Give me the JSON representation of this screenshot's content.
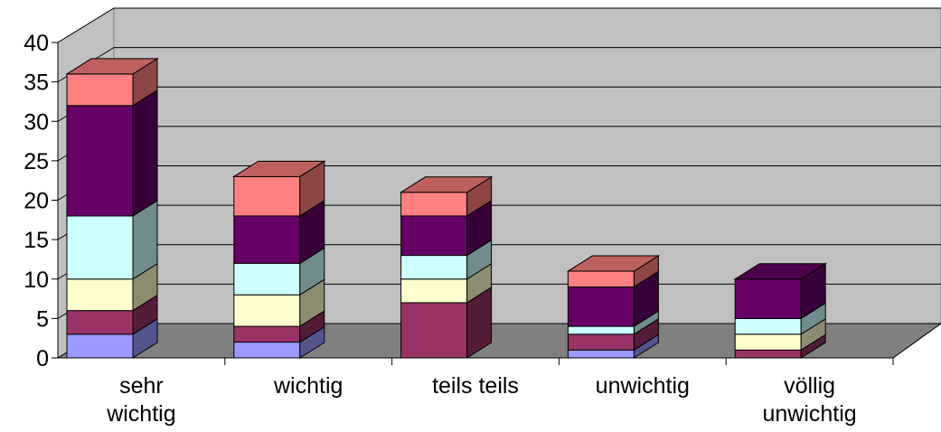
{
  "chart_data": {
    "type": "bar",
    "stacked": true,
    "three_d": true,
    "categories": [
      "sehr\nwichtig",
      "wichtig",
      "teils teils",
      "unwichtig",
      "völlig\nunwichtig"
    ],
    "ylim": [
      0,
      40
    ],
    "yticks": [
      0,
      5,
      10,
      15,
      20,
      25,
      30,
      35,
      40
    ],
    "grid": true,
    "legend": "none",
    "series": [
      {
        "values": [
          3,
          2,
          0,
          1,
          0
        ],
        "color": "#9999ff"
      },
      {
        "values": [
          3,
          2,
          7,
          2,
          1
        ],
        "color": "#993366"
      },
      {
        "values": [
          4,
          4,
          3,
          0,
          2
        ],
        "color": "#ffffcc"
      },
      {
        "values": [
          8,
          4,
          3,
          1,
          2
        ],
        "color": "#ccffff"
      },
      {
        "values": [
          14,
          6,
          5,
          5,
          5
        ],
        "color": "#660066"
      },
      {
        "values": [
          4,
          5,
          3,
          2,
          0
        ],
        "color": "#ff8080"
      }
    ]
  }
}
